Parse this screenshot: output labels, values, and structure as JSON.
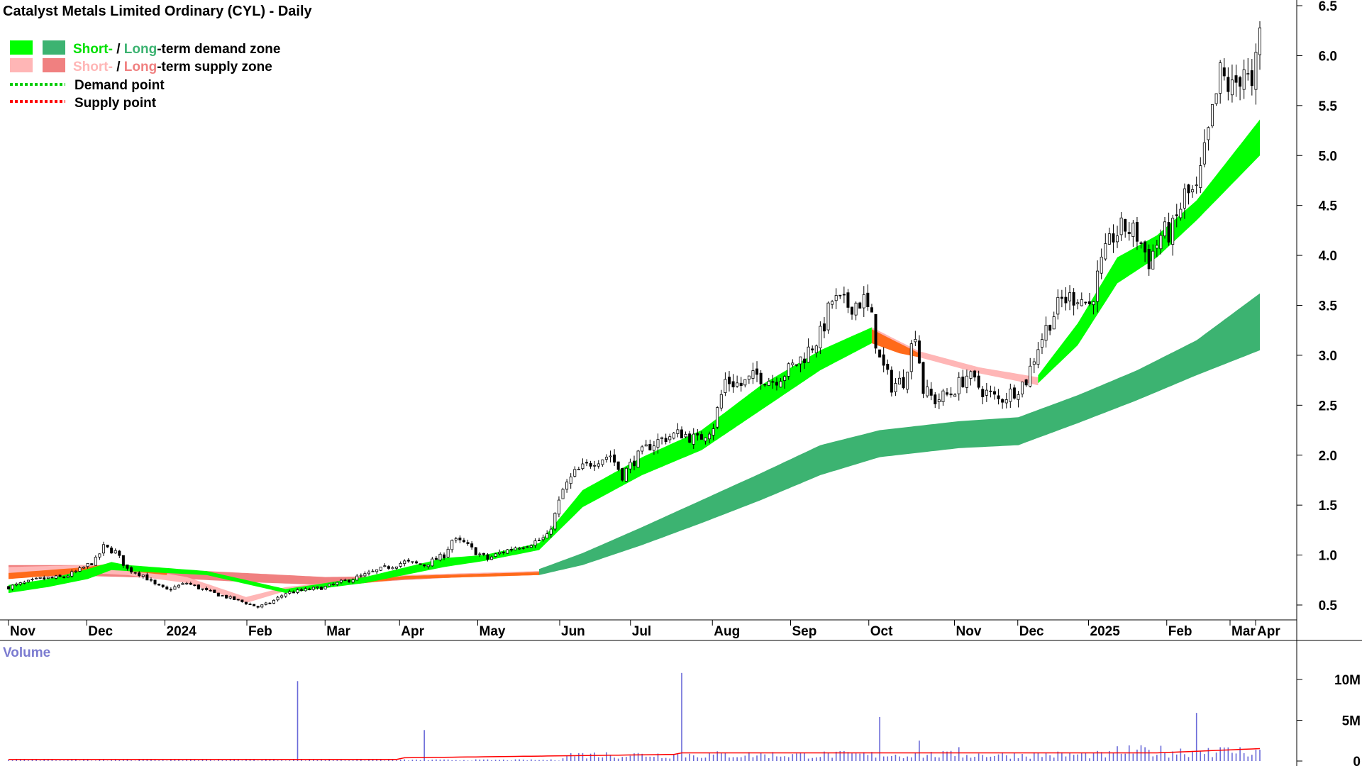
{
  "chart_data": [
    {
      "type": "candlestick",
      "title": "Catalyst Metals Limited Ordinary (CYL) - Daily",
      "legend": {
        "placement": "top-left",
        "demand_zone": {
          "short": "Short-",
          "sep": " / ",
          "long": "Long",
          "rest": "-term demand zone"
        },
        "supply_zone": {
          "short": "Short-",
          "sep": " / ",
          "long": "Long",
          "rest": "-term supply zone"
        },
        "demand_point": "Demand point",
        "supply_point": "Supply point"
      },
      "colors": {
        "short_demand": "#00ff00",
        "long_demand": "#3cb371",
        "short_supply": "#ffb6b6",
        "long_supply": "#f08080",
        "short_supply_dark": "#ff6a1a",
        "demand_point": "#00cc00",
        "supply_point": "#ff0000",
        "volume": "#6a6ad8",
        "volume_avg": "#ff0000"
      },
      "y_axis": {
        "ticks": [
          "6.5",
          "6.0",
          "5.5",
          "5.0",
          "4.5",
          "4.0",
          "3.5",
          "3.0",
          "2.5",
          "2.0",
          "1.5",
          "1.0",
          "0.5"
        ],
        "ylim": [
          0.4,
          6.5
        ]
      },
      "x_axis": {
        "ticks": [
          "Nov",
          "Dec",
          "2024",
          "Feb",
          "Mar",
          "Apr",
          "May",
          "Jun",
          "Jul",
          "Aug",
          "Sep",
          "Oct",
          "Nov",
          "Dec",
          "2025",
          "Feb",
          "Mar",
          "Apr"
        ]
      },
      "grid": false,
      "price_path": [
        [
          0,
          0.68
        ],
        [
          8,
          0.76
        ],
        [
          14,
          0.78
        ],
        [
          18,
          0.85
        ],
        [
          22,
          0.95
        ],
        [
          24,
          1.08
        ],
        [
          27,
          1.03
        ],
        [
          30,
          0.86
        ],
        [
          34,
          0.8
        ],
        [
          37,
          0.7
        ],
        [
          40,
          0.65
        ],
        [
          45,
          0.72
        ],
        [
          50,
          0.64
        ],
        [
          55,
          0.58
        ],
        [
          60,
          0.52
        ],
        [
          63,
          0.48
        ],
        [
          66,
          0.52
        ],
        [
          70,
          0.62
        ],
        [
          75,
          0.65
        ],
        [
          80,
          0.68
        ],
        [
          85,
          0.74
        ],
        [
          90,
          0.8
        ],
        [
          95,
          0.87
        ],
        [
          100,
          0.93
        ],
        [
          105,
          0.9
        ],
        [
          110,
          1.0
        ],
        [
          112,
          1.15
        ],
        [
          115,
          1.12
        ],
        [
          118,
          1.03
        ],
        [
          121,
          0.96
        ],
        [
          124,
          1.02
        ],
        [
          128,
          1.08
        ],
        [
          132,
          1.12
        ],
        [
          136,
          1.18
        ],
        [
          138,
          1.4
        ],
        [
          140,
          1.65
        ],
        [
          143,
          1.82
        ],
        [
          148,
          1.95
        ],
        [
          152,
          2.0
        ],
        [
          155,
          1.8
        ],
        [
          158,
          1.95
        ],
        [
          162,
          2.1
        ],
        [
          166,
          2.18
        ],
        [
          170,
          2.22
        ],
        [
          174,
          2.15
        ],
        [
          178,
          2.3
        ],
        [
          181,
          2.75
        ],
        [
          185,
          2.7
        ],
        [
          189,
          2.8
        ],
        [
          193,
          2.75
        ],
        [
          197,
          2.85
        ],
        [
          201,
          3.0
        ],
        [
          205,
          3.2
        ],
        [
          208,
          3.55
        ],
        [
          212,
          3.5
        ],
        [
          216,
          3.55
        ],
        [
          218,
          3.35
        ],
        [
          220,
          2.95
        ],
        [
          223,
          2.7
        ],
        [
          226,
          2.75
        ],
        [
          229,
          3.25
        ],
        [
          231,
          2.65
        ],
        [
          234,
          2.55
        ],
        [
          238,
          2.62
        ],
        [
          242,
          2.8
        ],
        [
          246,
          2.65
        ],
        [
          250,
          2.55
        ],
        [
          254,
          2.65
        ],
        [
          257,
          2.75
        ],
        [
          260,
          3.1
        ],
        [
          263,
          3.35
        ],
        [
          266,
          3.55
        ],
        [
          270,
          3.6
        ],
        [
          273,
          3.5
        ],
        [
          276,
          3.9
        ],
        [
          279,
          4.2
        ],
        [
          282,
          4.28
        ],
        [
          285,
          4.2
        ],
        [
          288,
          3.95
        ],
        [
          291,
          4.2
        ],
        [
          294,
          4.25
        ],
        [
          297,
          4.6
        ],
        [
          300,
          4.62
        ],
        [
          303,
          5.2
        ],
        [
          306,
          5.8
        ],
        [
          309,
          5.65
        ],
        [
          312,
          5.9
        ],
        [
          314,
          5.6
        ],
        [
          316,
          6.2
        ]
      ],
      "short_demand_zone": [
        [
          0,
          0.62,
          0.7
        ],
        [
          10,
          0.68,
          0.76
        ],
        [
          20,
          0.76,
          0.86
        ],
        [
          26,
          0.85,
          0.93
        ],
        [
          30,
          0.84,
          0.9
        ],
        [
          50,
          0.8,
          0.84
        ],
        [
          70,
          0.62,
          0.66
        ],
        [
          90,
          0.72,
          0.78
        ],
        [
          110,
          0.88,
          0.97
        ],
        [
          120,
          0.94,
          1.0
        ],
        [
          134,
          1.05,
          1.12
        ],
        [
          145,
          1.48,
          1.65
        ],
        [
          160,
          1.8,
          1.98
        ],
        [
          175,
          2.05,
          2.25
        ],
        [
          190,
          2.45,
          2.7
        ],
        [
          205,
          2.85,
          3.05
        ],
        [
          218,
          3.12,
          3.28
        ],
        [
          260,
          2.72,
          2.8
        ],
        [
          270,
          3.1,
          3.32
        ],
        [
          280,
          3.72,
          3.98
        ],
        [
          290,
          3.98,
          4.2
        ],
        [
          300,
          4.35,
          4.55
        ],
        [
          316,
          5.0,
          5.36
        ]
      ],
      "long_demand_zone": [
        [
          134,
          0.8,
          0.86
        ],
        [
          145,
          0.9,
          1.02
        ],
        [
          160,
          1.1,
          1.28
        ],
        [
          175,
          1.32,
          1.55
        ],
        [
          190,
          1.55,
          1.82
        ],
        [
          205,
          1.8,
          2.1
        ],
        [
          220,
          1.98,
          2.25
        ],
        [
          240,
          2.07,
          2.34
        ],
        [
          255,
          2.1,
          2.38
        ],
        [
          270,
          2.32,
          2.6
        ],
        [
          285,
          2.55,
          2.85
        ],
        [
          300,
          2.8,
          3.15
        ],
        [
          316,
          3.05,
          3.62
        ]
      ],
      "short_supply_zone": [
        [
          0,
          0.78,
          0.88
        ],
        [
          20,
          0.82,
          0.9
        ],
        [
          30,
          0.8,
          0.88
        ],
        [
          45,
          0.72,
          0.78
        ],
        [
          60,
          0.52,
          0.58
        ],
        [
          70,
          0.64,
          0.68
        ],
        [
          100,
          0.76,
          0.8
        ],
        [
          134,
          0.8,
          0.84
        ],
        [
          218,
          3.12,
          3.28
        ],
        [
          230,
          2.98,
          3.04
        ],
        [
          245,
          2.82,
          2.88
        ],
        [
          260,
          2.7,
          2.78
        ]
      ],
      "long_supply_zone": [
        [
          0,
          0.78,
          0.9
        ],
        [
          20,
          0.79,
          0.9
        ],
        [
          40,
          0.77,
          0.86
        ],
        [
          60,
          0.73,
          0.82
        ],
        [
          80,
          0.7,
          0.78
        ],
        [
          100,
          0.75,
          0.79
        ],
        [
          115,
          0.78,
          0.81
        ],
        [
          134,
          0.8,
          0.84
        ]
      ],
      "volume_spikes": [
        [
          73,
          9.8
        ],
        [
          105,
          3.8
        ],
        [
          147,
          0.9
        ],
        [
          170,
          10.8
        ],
        [
          220,
          5.4
        ],
        [
          230,
          2.5
        ],
        [
          240,
          1.7
        ],
        [
          300,
          5.9
        ],
        [
          303,
          1.6
        ]
      ]
    },
    {
      "type": "bar",
      "title": "Volume",
      "y_axis": {
        "ticks": [
          "10M",
          "5M",
          "0"
        ],
        "ylim": [
          0,
          12
        ]
      }
    }
  ]
}
